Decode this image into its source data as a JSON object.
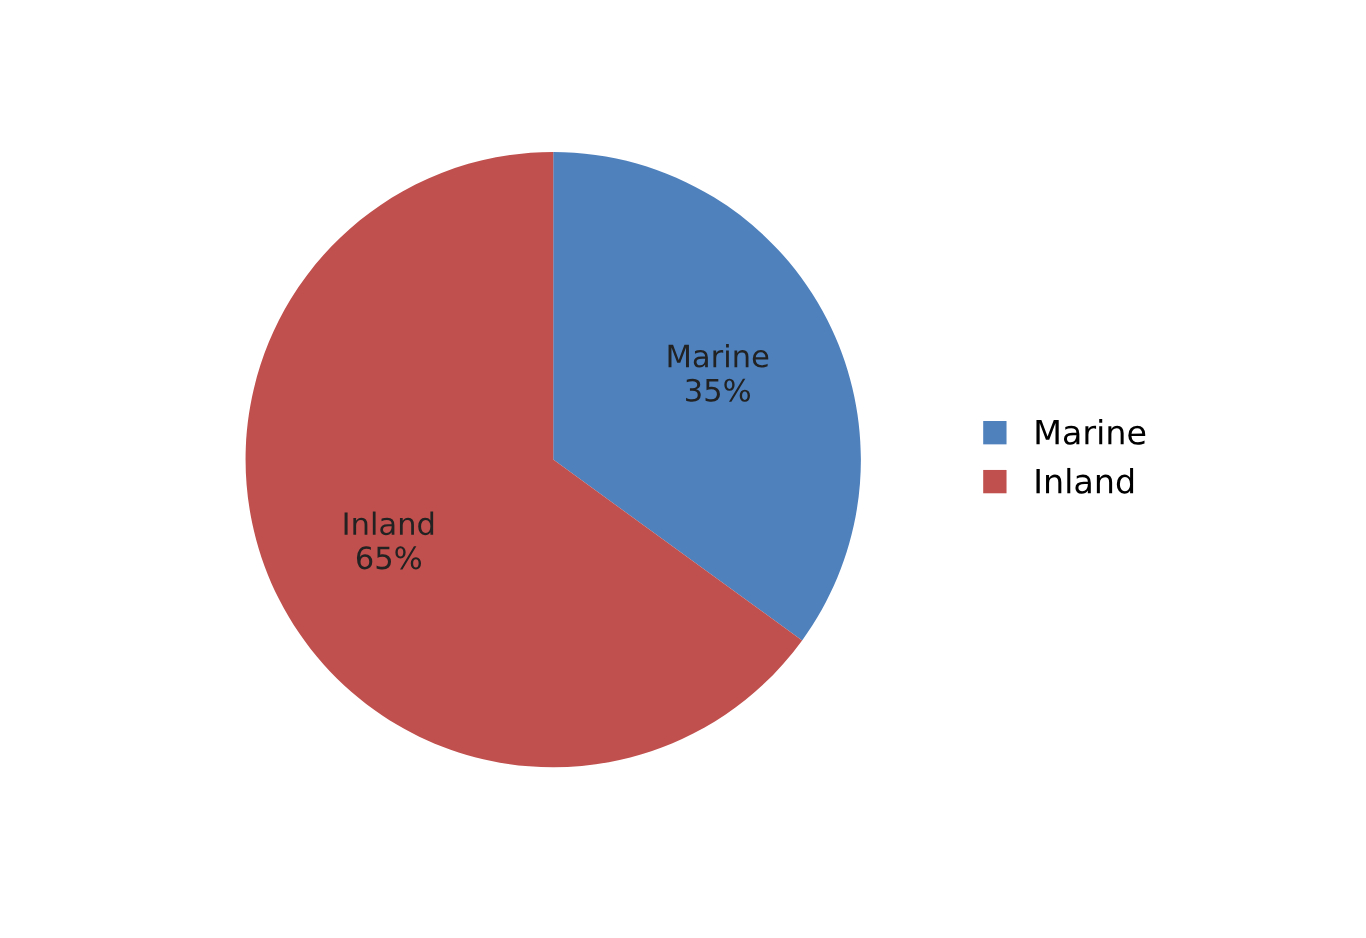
{
  "chart_data": {
    "type": "pie",
    "categories": [
      "Marine",
      "Inland"
    ],
    "values": [
      35,
      65
    ],
    "value_labels": [
      "35%",
      "65%"
    ],
    "colors": [
      "#4f81bd",
      "#c0504d"
    ],
    "legend": "right"
  }
}
